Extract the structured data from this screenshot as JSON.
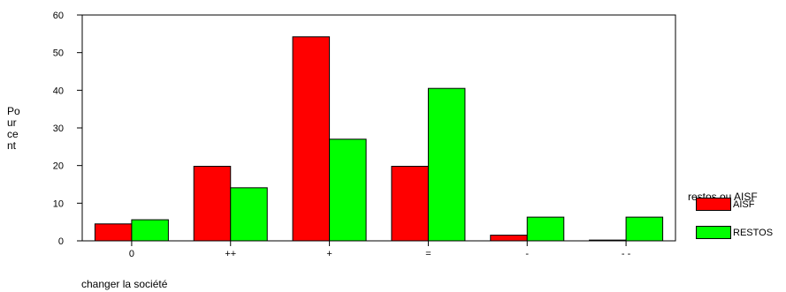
{
  "chart_data": {
    "type": "bar",
    "title": "",
    "xlabel": "changer la société",
    "ylabel": "Pourcent",
    "ylabel_lines": [
      "Po",
      "ur",
      "ce",
      "nt"
    ],
    "categories": [
      "0",
      "++",
      "+",
      "=",
      "-",
      "- -"
    ],
    "series": [
      {
        "name": "AISF",
        "color": "#ff0000",
        "values": [
          4.5,
          19.8,
          54.2,
          19.8,
          1.5,
          0.2
        ]
      },
      {
        "name": "RESTOS",
        "color": "#00ff00",
        "values": [
          5.6,
          14.1,
          27.0,
          40.5,
          6.3,
          6.3
        ]
      }
    ],
    "ylim": [
      0,
      60
    ],
    "yticks": [
      0,
      10,
      20,
      30,
      40,
      50,
      60
    ],
    "legend_title": "restos ou AISF",
    "legend_placement": "right",
    "grid": false
  }
}
